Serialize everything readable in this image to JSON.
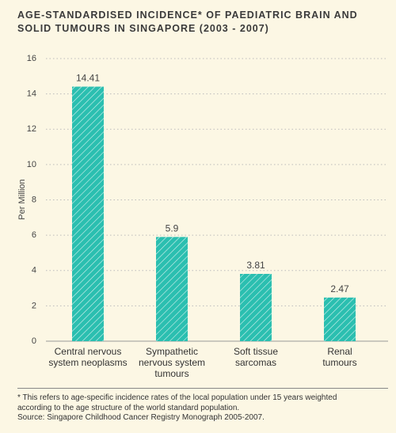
{
  "chart_data": {
    "type": "bar",
    "title": "AGE-STANDARDISED INCIDENCE* OF PAEDIATRIC BRAIN AND\nSOLID TUMOURS IN SINGAPORE (2003 - 2007)",
    "y_label": "Per Million",
    "categories": [
      "Central nervous\nsystem neoplasms",
      "Sympathetic\nnervous system\ntumours",
      "Soft tissue\nsarcomas",
      "Renal\ntumours"
    ],
    "values": [
      14.41,
      5.9,
      3.81,
      2.47
    ],
    "color": "#2bbfb0",
    "ylim": [
      0,
      16
    ],
    "yticks": [
      0,
      2,
      4,
      6,
      8,
      10,
      12,
      14,
      16
    ],
    "grid": true,
    "footnote": "* This refers to age-specific incidence rates of the local population under 15 years weighted\naccording to the age structure of the world standard population.",
    "source": "Source: Singapore Childhood Cancer Registry Monograph 2005-2007."
  }
}
